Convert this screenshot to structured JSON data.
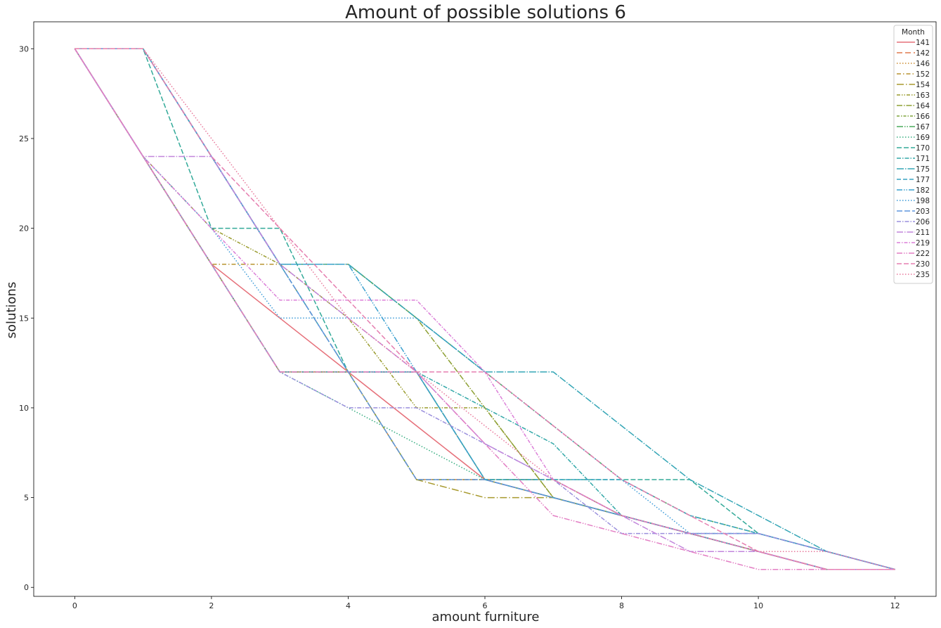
{
  "chart_data": {
    "type": "line",
    "title": "Amount of possible solutions 6",
    "xlabel": "amount furniture",
    "ylabel": "solutions",
    "xlim": [
      -0.6,
      12.6
    ],
    "ylim": [
      -0.5,
      31.5
    ],
    "xticks": [
      0,
      2,
      4,
      6,
      8,
      10,
      12
    ],
    "yticks": [
      0,
      5,
      10,
      15,
      20,
      25,
      30
    ],
    "legend": {
      "title": "Month",
      "position": "top-right"
    },
    "series": [
      {
        "name": "141",
        "color": "#e6707a",
        "dash": "",
        "x": [
          0,
          1,
          2,
          3,
          4,
          5,
          6,
          7,
          8,
          9,
          10,
          11,
          12
        ],
        "y": [
          30,
          24,
          18,
          15,
          12,
          9,
          6,
          5,
          4,
          3,
          2,
          1,
          1
        ]
      },
      {
        "name": "142",
        "color": "#e07a4f",
        "dash": "8,4",
        "x": [
          0,
          1,
          2,
          3,
          4,
          5,
          6,
          7,
          8,
          9,
          10,
          11,
          12
        ],
        "y": [
          30,
          24,
          18,
          12,
          12,
          6,
          6,
          6,
          4,
          3,
          2,
          1,
          1
        ]
      },
      {
        "name": "146",
        "color": "#cc8b2f",
        "dash": "1.5,2.5",
        "x": [
          0,
          1,
          2,
          3,
          4,
          5,
          6,
          7,
          8,
          9,
          10,
          11,
          12
        ],
        "y": [
          30,
          24,
          18,
          12,
          12,
          12,
          6,
          5,
          4,
          3,
          2,
          1,
          1
        ]
      },
      {
        "name": "152",
        "color": "#b89430",
        "dash": "6,3,1.5,3",
        "x": [
          0,
          1,
          2,
          3,
          4,
          5,
          6,
          7,
          8,
          9,
          10,
          11,
          12
        ],
        "y": [
          30,
          24,
          18,
          18,
          12,
          12,
          6,
          5,
          4,
          3,
          2,
          1,
          1
        ]
      },
      {
        "name": "154",
        "color": "#a89a2e",
        "dash": "10,3,1.5,3",
        "x": [
          0,
          1,
          2,
          3,
          4,
          5,
          6,
          7,
          8,
          9,
          10,
          11,
          12
        ],
        "y": [
          30,
          24,
          18,
          12,
          12,
          6,
          5,
          5,
          4,
          3,
          2,
          1,
          1
        ]
      },
      {
        "name": "163",
        "color": "#9a9c2f",
        "dash": "5,2,1.5,2,1.5,2",
        "x": [
          0,
          1,
          2,
          3,
          4,
          5,
          6,
          7,
          8,
          9,
          10,
          11,
          12
        ],
        "y": [
          30,
          24,
          20,
          18,
          15,
          10,
          10,
          5,
          4,
          3,
          2,
          1,
          1
        ]
      },
      {
        "name": "164",
        "color": "#8da033",
        "dash": "8,2,1.5,2",
        "x": [
          0,
          1,
          2,
          3,
          4,
          5,
          6,
          7,
          8,
          9,
          10,
          11,
          12
        ],
        "y": [
          30,
          30,
          24,
          18,
          18,
          15,
          10,
          5,
          4,
          3,
          2,
          1,
          1
        ]
      },
      {
        "name": "166",
        "color": "#7ea43a",
        "dash": "4,2,1.5,2",
        "x": [
          0,
          1,
          2,
          3,
          4,
          5,
          6,
          7,
          8,
          9,
          10,
          11,
          12
        ],
        "y": [
          30,
          24,
          18,
          12,
          12,
          6,
          6,
          6,
          4,
          3,
          2,
          1,
          1
        ]
      },
      {
        "name": "167",
        "color": "#4aab5c",
        "dash": "9,2,1.5,2,1.5,2",
        "x": [
          0,
          1,
          2,
          3,
          4,
          5,
          6,
          7,
          8,
          9,
          10,
          11,
          12
        ],
        "y": [
          30,
          30,
          24,
          18,
          18,
          15,
          12,
          9,
          6,
          4,
          3,
          2,
          1
        ]
      },
      {
        "name": "169",
        "color": "#36ad80",
        "dash": "1.5,2.5",
        "x": [
          0,
          1,
          2,
          3,
          4,
          5,
          6,
          7,
          8,
          9,
          10,
          11,
          12
        ],
        "y": [
          30,
          24,
          18,
          12,
          10,
          8,
          6,
          5,
          4,
          3,
          2,
          1,
          1
        ]
      },
      {
        "name": "170",
        "color": "#33aa99",
        "dash": "7,3",
        "x": [
          0,
          1,
          2,
          3,
          4,
          5,
          6,
          7,
          8,
          9,
          10,
          11,
          12
        ],
        "y": [
          30,
          30,
          20,
          20,
          12,
          12,
          6,
          6,
          6,
          6,
          3,
          2,
          1
        ]
      },
      {
        "name": "171",
        "color": "#33a8a8",
        "dash": "6,2,1.5,2",
        "x": [
          0,
          1,
          2,
          3,
          4,
          5,
          6,
          7,
          8,
          9,
          10,
          11,
          12
        ],
        "y": [
          30,
          24,
          18,
          12,
          12,
          12,
          10,
          8,
          4,
          3,
          3,
          2,
          1
        ]
      },
      {
        "name": "175",
        "color": "#35a6b6",
        "dash": "10,2,1.5,2",
        "x": [
          0,
          1,
          2,
          3,
          4,
          5,
          6,
          7,
          8,
          9,
          10,
          11,
          12
        ],
        "y": [
          30,
          30,
          24,
          18,
          18,
          15,
          12,
          12,
          9,
          6,
          4,
          2,
          1
        ]
      },
      {
        "name": "177",
        "color": "#38a3c2",
        "dash": "6,3",
        "x": [
          0,
          1,
          2,
          3,
          4,
          5,
          6,
          7,
          8,
          9,
          10,
          11,
          12
        ],
        "y": [
          30,
          30,
          24,
          18,
          12,
          12,
          6,
          6,
          6,
          4,
          3,
          2,
          1
        ]
      },
      {
        "name": "182",
        "color": "#3aa0cf",
        "dash": "8,2,1.5,2,1.5,2",
        "x": [
          0,
          1,
          2,
          3,
          4,
          5,
          6,
          7,
          8,
          9,
          10,
          11,
          12
        ],
        "y": [
          30,
          30,
          24,
          18,
          18,
          12,
          6,
          5,
          4,
          3,
          2,
          1,
          1
        ]
      },
      {
        "name": "198",
        "color": "#3b9ad8",
        "dash": "1.5,2.5",
        "x": [
          0,
          1,
          2,
          3,
          4,
          5,
          6,
          7,
          8,
          9,
          10,
          11,
          12
        ],
        "y": [
          30,
          24,
          20,
          15,
          15,
          15,
          12,
          9,
          6,
          3,
          2,
          1,
          1
        ]
      },
      {
        "name": "203",
        "color": "#5f95dd",
        "dash": "8,3",
        "x": [
          0,
          1,
          2,
          3,
          4,
          5,
          6,
          7,
          8,
          9,
          10,
          11,
          12
        ],
        "y": [
          30,
          30,
          24,
          18,
          12,
          6,
          6,
          5,
          4,
          3,
          3,
          2,
          1
        ]
      },
      {
        "name": "206",
        "color": "#9a8fdd",
        "dash": "6,2,1.5,2",
        "x": [
          0,
          1,
          2,
          3,
          4,
          5,
          6,
          7,
          8,
          9,
          10,
          11,
          12
        ],
        "y": [
          30,
          24,
          18,
          12,
          10,
          10,
          8,
          6,
          3,
          3,
          3,
          2,
          1
        ]
      },
      {
        "name": "211",
        "color": "#c286dc",
        "dash": "9,2,1.5,2",
        "x": [
          0,
          1,
          2,
          3,
          4,
          5,
          6,
          7,
          8,
          9,
          10,
          11,
          12
        ],
        "y": [
          30,
          24,
          24,
          18,
          15,
          12,
          8,
          6,
          4,
          2,
          2,
          1,
          1
        ]
      },
      {
        "name": "219",
        "color": "#dc7fd8",
        "dash": "5,2,1.5,2",
        "x": [
          0,
          1,
          2,
          3,
          4,
          5,
          6,
          7,
          8,
          9,
          10,
          11,
          12
        ],
        "y": [
          30,
          24,
          20,
          16,
          16,
          16,
          12,
          6,
          4,
          3,
          2,
          1,
          1
        ]
      },
      {
        "name": "222",
        "color": "#e37fc4",
        "dash": "8,2,1.5,2,1.5,2",
        "x": [
          0,
          1,
          2,
          3,
          4,
          5,
          6,
          7,
          8,
          9,
          10,
          11,
          12
        ],
        "y": [
          30,
          24,
          18,
          12,
          12,
          12,
          8,
          4,
          3,
          2,
          1,
          1,
          1
        ]
      },
      {
        "name": "230",
        "color": "#e67fb0",
        "dash": "7,3",
        "x": [
          0,
          1,
          2,
          3,
          4,
          5,
          6,
          7,
          8,
          9,
          10,
          11,
          12
        ],
        "y": [
          30,
          30,
          24,
          20,
          16,
          12,
          12,
          9,
          6,
          4,
          2,
          1,
          1
        ]
      },
      {
        "name": "235",
        "color": "#e8799b",
        "dash": "1.5,2.5",
        "x": [
          0,
          1,
          2,
          3,
          4,
          5,
          6,
          7,
          8,
          9,
          10,
          11,
          12
        ],
        "y": [
          30,
          30,
          25,
          20,
          15,
          12,
          9,
          6,
          4,
          3,
          2,
          2,
          1
        ]
      }
    ]
  }
}
